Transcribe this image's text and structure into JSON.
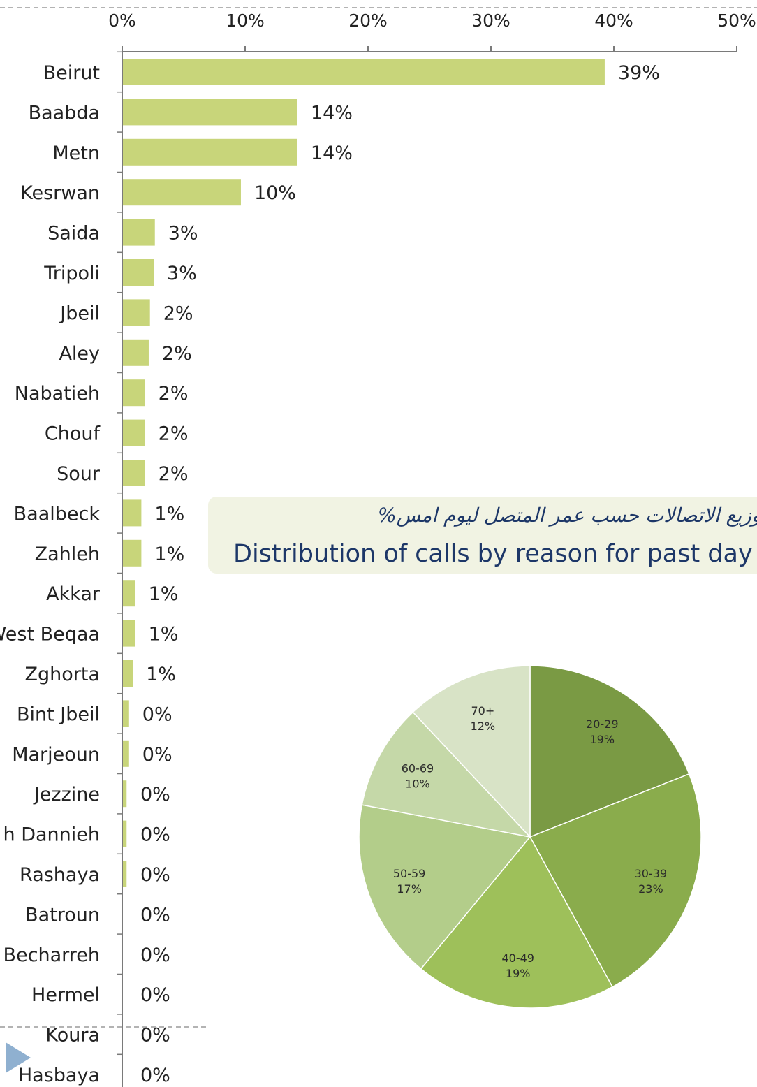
{
  "chart_data": [
    {
      "type": "bar",
      "orientation": "horizontal",
      "categories": [
        "Beirut",
        "Baabda",
        "Metn",
        "Kesrwan",
        "Saida",
        "Tripoli",
        "Jbeil",
        "Aley",
        "Nabatieh",
        "Chouf",
        "Sour",
        "Baalbeck",
        "Zahleh",
        "Akkar",
        "West Beqaa",
        "Zghorta",
        "Bint Jbeil",
        "Marjeoun",
        "Jezzine",
        "Minieh Dannieh",
        "Rashaya",
        "Batroun",
        "Becharreh",
        "Hermel",
        "Koura",
        "Hasbaya"
      ],
      "display_categories": [
        "Beirut",
        "Baabda",
        "Metn",
        "Kesrwan",
        "Saida",
        "Tripoli",
        "Jbeil",
        "Aley",
        "Nabatieh",
        "Chouf",
        "Sour",
        "Baalbeck",
        "Zahleh",
        "Akkar",
        "West Beqaa",
        "Zghorta",
        "Bint Jbeil",
        "Marjeoun",
        "Jezzine",
        "h Dannieh",
        "Rashaya",
        "Batroun",
        "Becharreh",
        "Hermel",
        "Koura",
        "Hasbaya"
      ],
      "values": [
        39.2,
        14.2,
        14.2,
        9.6,
        2.6,
        2.5,
        2.2,
        2.1,
        1.8,
        1.8,
        1.8,
        1.5,
        1.5,
        1.0,
        1.0,
        0.8,
        0.5,
        0.5,
        0.3,
        0.3,
        0.3,
        0.0,
        0.0,
        0.0,
        0.0,
        0.0
      ],
      "value_labels": [
        "39%",
        "14%",
        "14%",
        "10%",
        "3%",
        "3%",
        "2%",
        "2%",
        "2%",
        "2%",
        "2%",
        "1%",
        "1%",
        "1%",
        "1%",
        "1%",
        "0%",
        "0%",
        "0%",
        "0%",
        "0%",
        "0%",
        "0%",
        "0%",
        "0%",
        "0%"
      ],
      "xlim": [
        0,
        50
      ],
      "xticks": [
        "0%",
        "10%",
        "20%",
        "30%",
        "40%",
        "50%"
      ],
      "bar_color": "#c8d57a",
      "grid": false
    },
    {
      "type": "pie",
      "title_ar": "توزيع الاتصالات حسب عمر المتصل ليوم امس%",
      "title_en": "Distribution of calls by reason for past day",
      "slices": [
        {
          "label": "20-29",
          "value": 19,
          "value_label": "19%",
          "color": "#7a9a44"
        },
        {
          "label": "30-39",
          "value": 23,
          "value_label": "23%",
          "color": "#8aac4c"
        },
        {
          "label": "40-49",
          "value": 19,
          "value_label": "19%",
          "color": "#9ec05a"
        },
        {
          "label": "50-59",
          "value": 17,
          "value_label": "17%",
          "color": "#b3cd8a"
        },
        {
          "label": "60-69",
          "value": 10,
          "value_label": "10%",
          "color": "#c5d8a8"
        },
        {
          "label": "70+",
          "value": 12,
          "value_label": "12%",
          "color": "#d8e3c6"
        }
      ],
      "start_angle_deg": -90,
      "direction": "clockwise"
    }
  ]
}
